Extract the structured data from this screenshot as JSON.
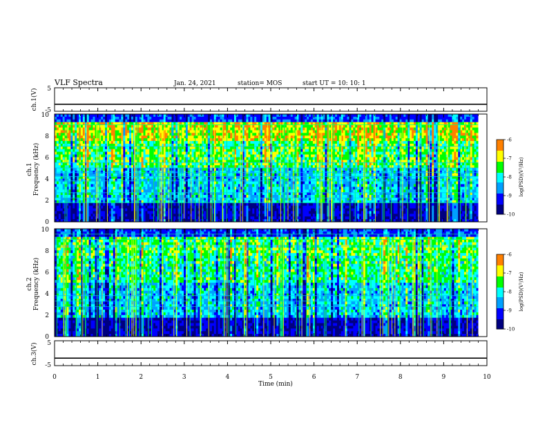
{
  "header": {
    "title": "VLF Spectra",
    "date": "Jan. 24, 2021",
    "station": "station= MOS",
    "start": "start  UT =   10: 10: 1"
  },
  "chart_data": [
    {
      "type": "line",
      "name": "ch1-waveform",
      "ylabel": "ch.1(V)",
      "ylim": [
        -5,
        5
      ],
      "yticks": [
        "5",
        "-5"
      ],
      "xlim": [
        0,
        10
      ],
      "values_note": "flat trace near -2 V",
      "level": -2
    },
    {
      "type": "heatmap",
      "name": "ch1-spectrogram",
      "ylabel": "ch.1",
      "ylabel2": "Frequency  (kHz)",
      "ylim": [
        0,
        10
      ],
      "yticks": [
        "0",
        "2",
        "4",
        "6",
        "8",
        "10"
      ],
      "xlim": [
        0,
        9.8
      ],
      "colorbar": {
        "ticks": [
          "-6",
          "-7",
          "-8",
          "-9",
          "-10"
        ],
        "label": "log(PSD)(V²/Hz)",
        "range": [
          -10,
          -6
        ]
      }
    },
    {
      "type": "heatmap",
      "name": "ch2-spectrogram",
      "ylabel": "ch.2",
      "ylabel2": "Frequency  (kHz)",
      "ylim": [
        0,
        10
      ],
      "yticks": [
        "0",
        "2",
        "4",
        "6",
        "8",
        "10"
      ],
      "xlim": [
        0,
        9.8
      ],
      "colorbar": {
        "ticks": [
          "-6",
          "-7",
          "-8",
          "-9",
          "-10"
        ],
        "label": "log(PSD)(V²/Hz)",
        "range": [
          -10,
          -6
        ]
      }
    },
    {
      "type": "line",
      "name": "ch3-waveform",
      "ylabel": "ch.3(V)",
      "ylim": [
        -5,
        5
      ],
      "yticks": [
        "5",
        "-5"
      ],
      "xlim": [
        0,
        10
      ],
      "level": -2
    }
  ],
  "xaxis": {
    "label": "Time  (min)",
    "ticks": [
      "0",
      "1",
      "2",
      "3",
      "4",
      "5",
      "6",
      "7",
      "8",
      "9",
      "10"
    ]
  },
  "colors": {
    "colormap": [
      "#000080",
      "#0000ff",
      "#00a0ff",
      "#00ffff",
      "#00ff00",
      "#ffff00",
      "#ff8000",
      "#ff0000",
      "#ffffff"
    ]
  }
}
